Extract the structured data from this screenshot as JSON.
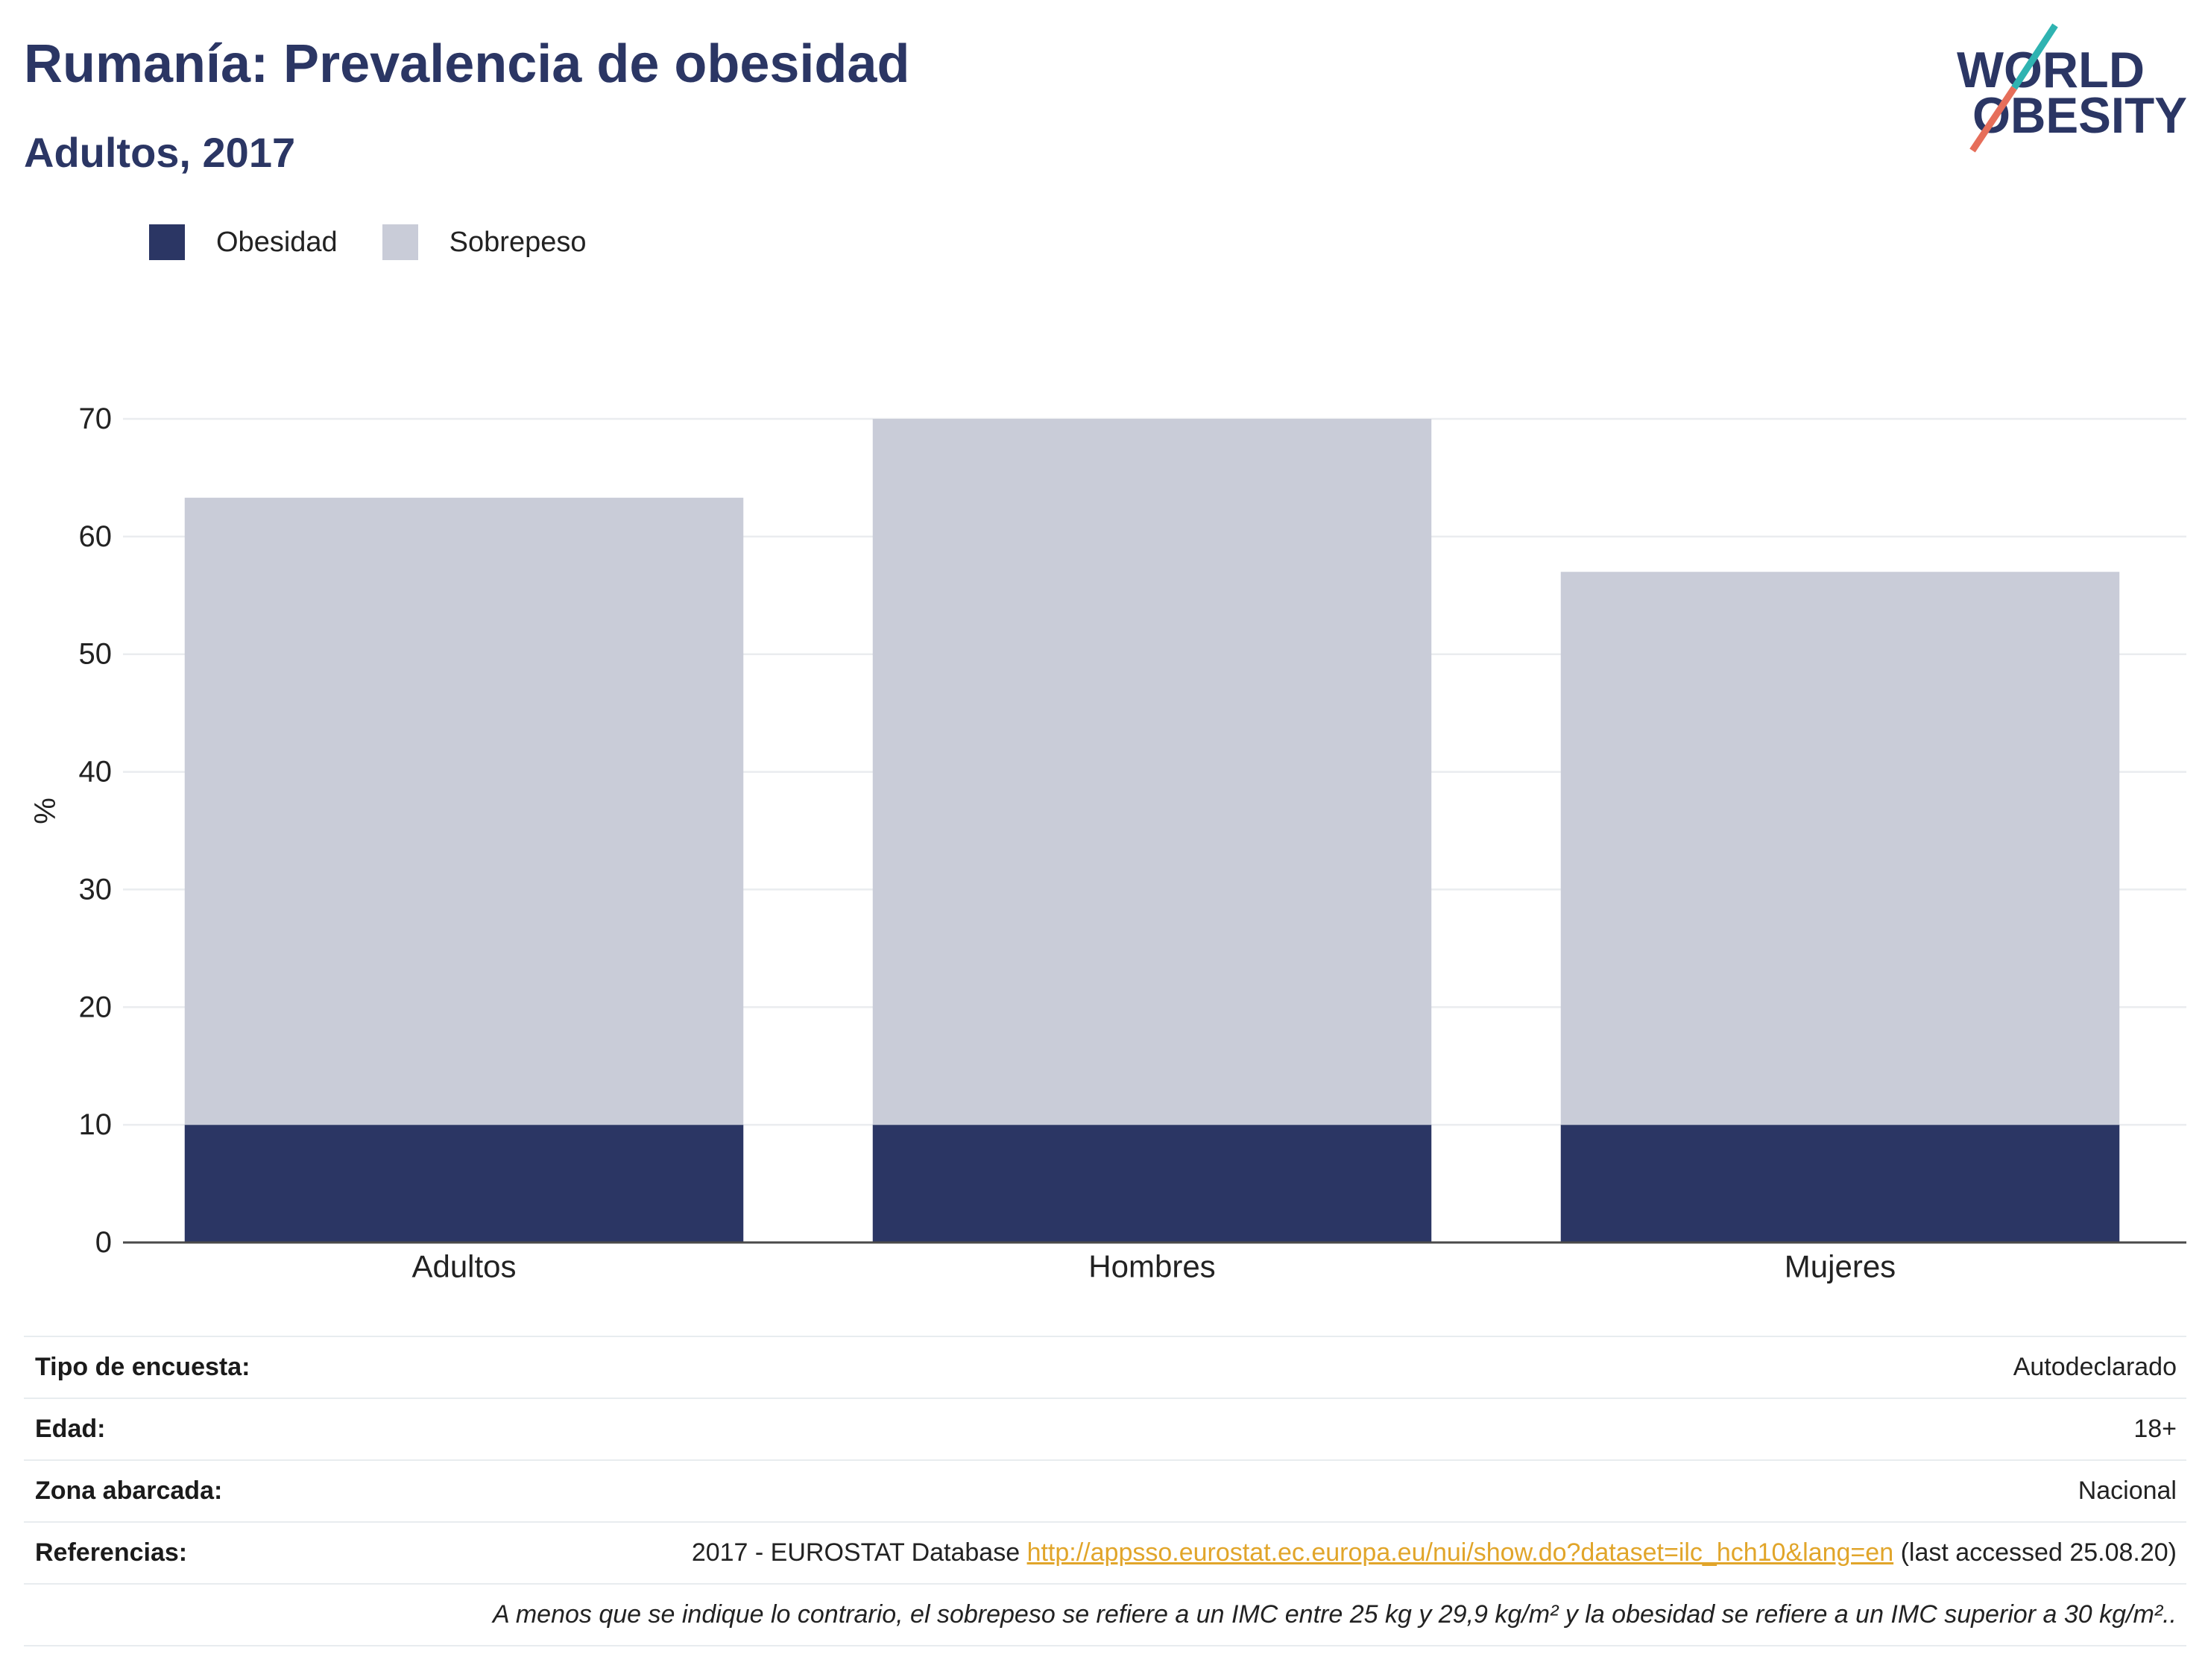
{
  "logo": {
    "line1": "WORLD",
    "line2": "OBESITY"
  },
  "colors": {
    "title": "#2b3664",
    "link": "#e1a52a",
    "logo_teal": "#2fb3b1",
    "logo_coral": "#e66e5a"
  },
  "chart_data": {
    "type": "bar",
    "stacked": true,
    "title": "Rumanía: Prevalencia de obesidad",
    "subtitle": "Adultos, 2017",
    "categories": [
      "Adultos",
      "Hombres",
      "Mujeres"
    ],
    "series": [
      {
        "name": "Obesidad",
        "values": [
          10.0,
          10.0,
          10.0
        ],
        "color": "#2b3664"
      },
      {
        "name": "Sobrepeso",
        "values": [
          53.3,
          60.0,
          47.0
        ],
        "color": "#c9ccd8"
      }
    ],
    "ylabel": "%",
    "ylim": [
      0,
      70
    ],
    "yticks": [
      0,
      10,
      20,
      30,
      40,
      50,
      60,
      70
    ],
    "grid": true,
    "legend": "top-left"
  },
  "info": {
    "rows": [
      {
        "label": "Tipo de encuesta:",
        "value": "Autodeclarado"
      },
      {
        "label": "Edad:",
        "value": "18+"
      },
      {
        "label": "Zona abarcada:",
        "value": "Nacional"
      }
    ],
    "references": {
      "label": "Referencias:",
      "prefix": "2017 - EUROSTAT Database",
      "link": "http://appsso.eurostat.ec.europa.eu/nui/show.do?dataset=ilc_hch10&lang=en",
      "suffix": "(last accessed 25.08.20)"
    },
    "note": "A menos que se indique lo contrario, el sobrepeso se refiere a un IMC entre 25 kg y 29,9 kg/m² y la obesidad se refiere a un IMC superior a 30 kg/m².."
  }
}
